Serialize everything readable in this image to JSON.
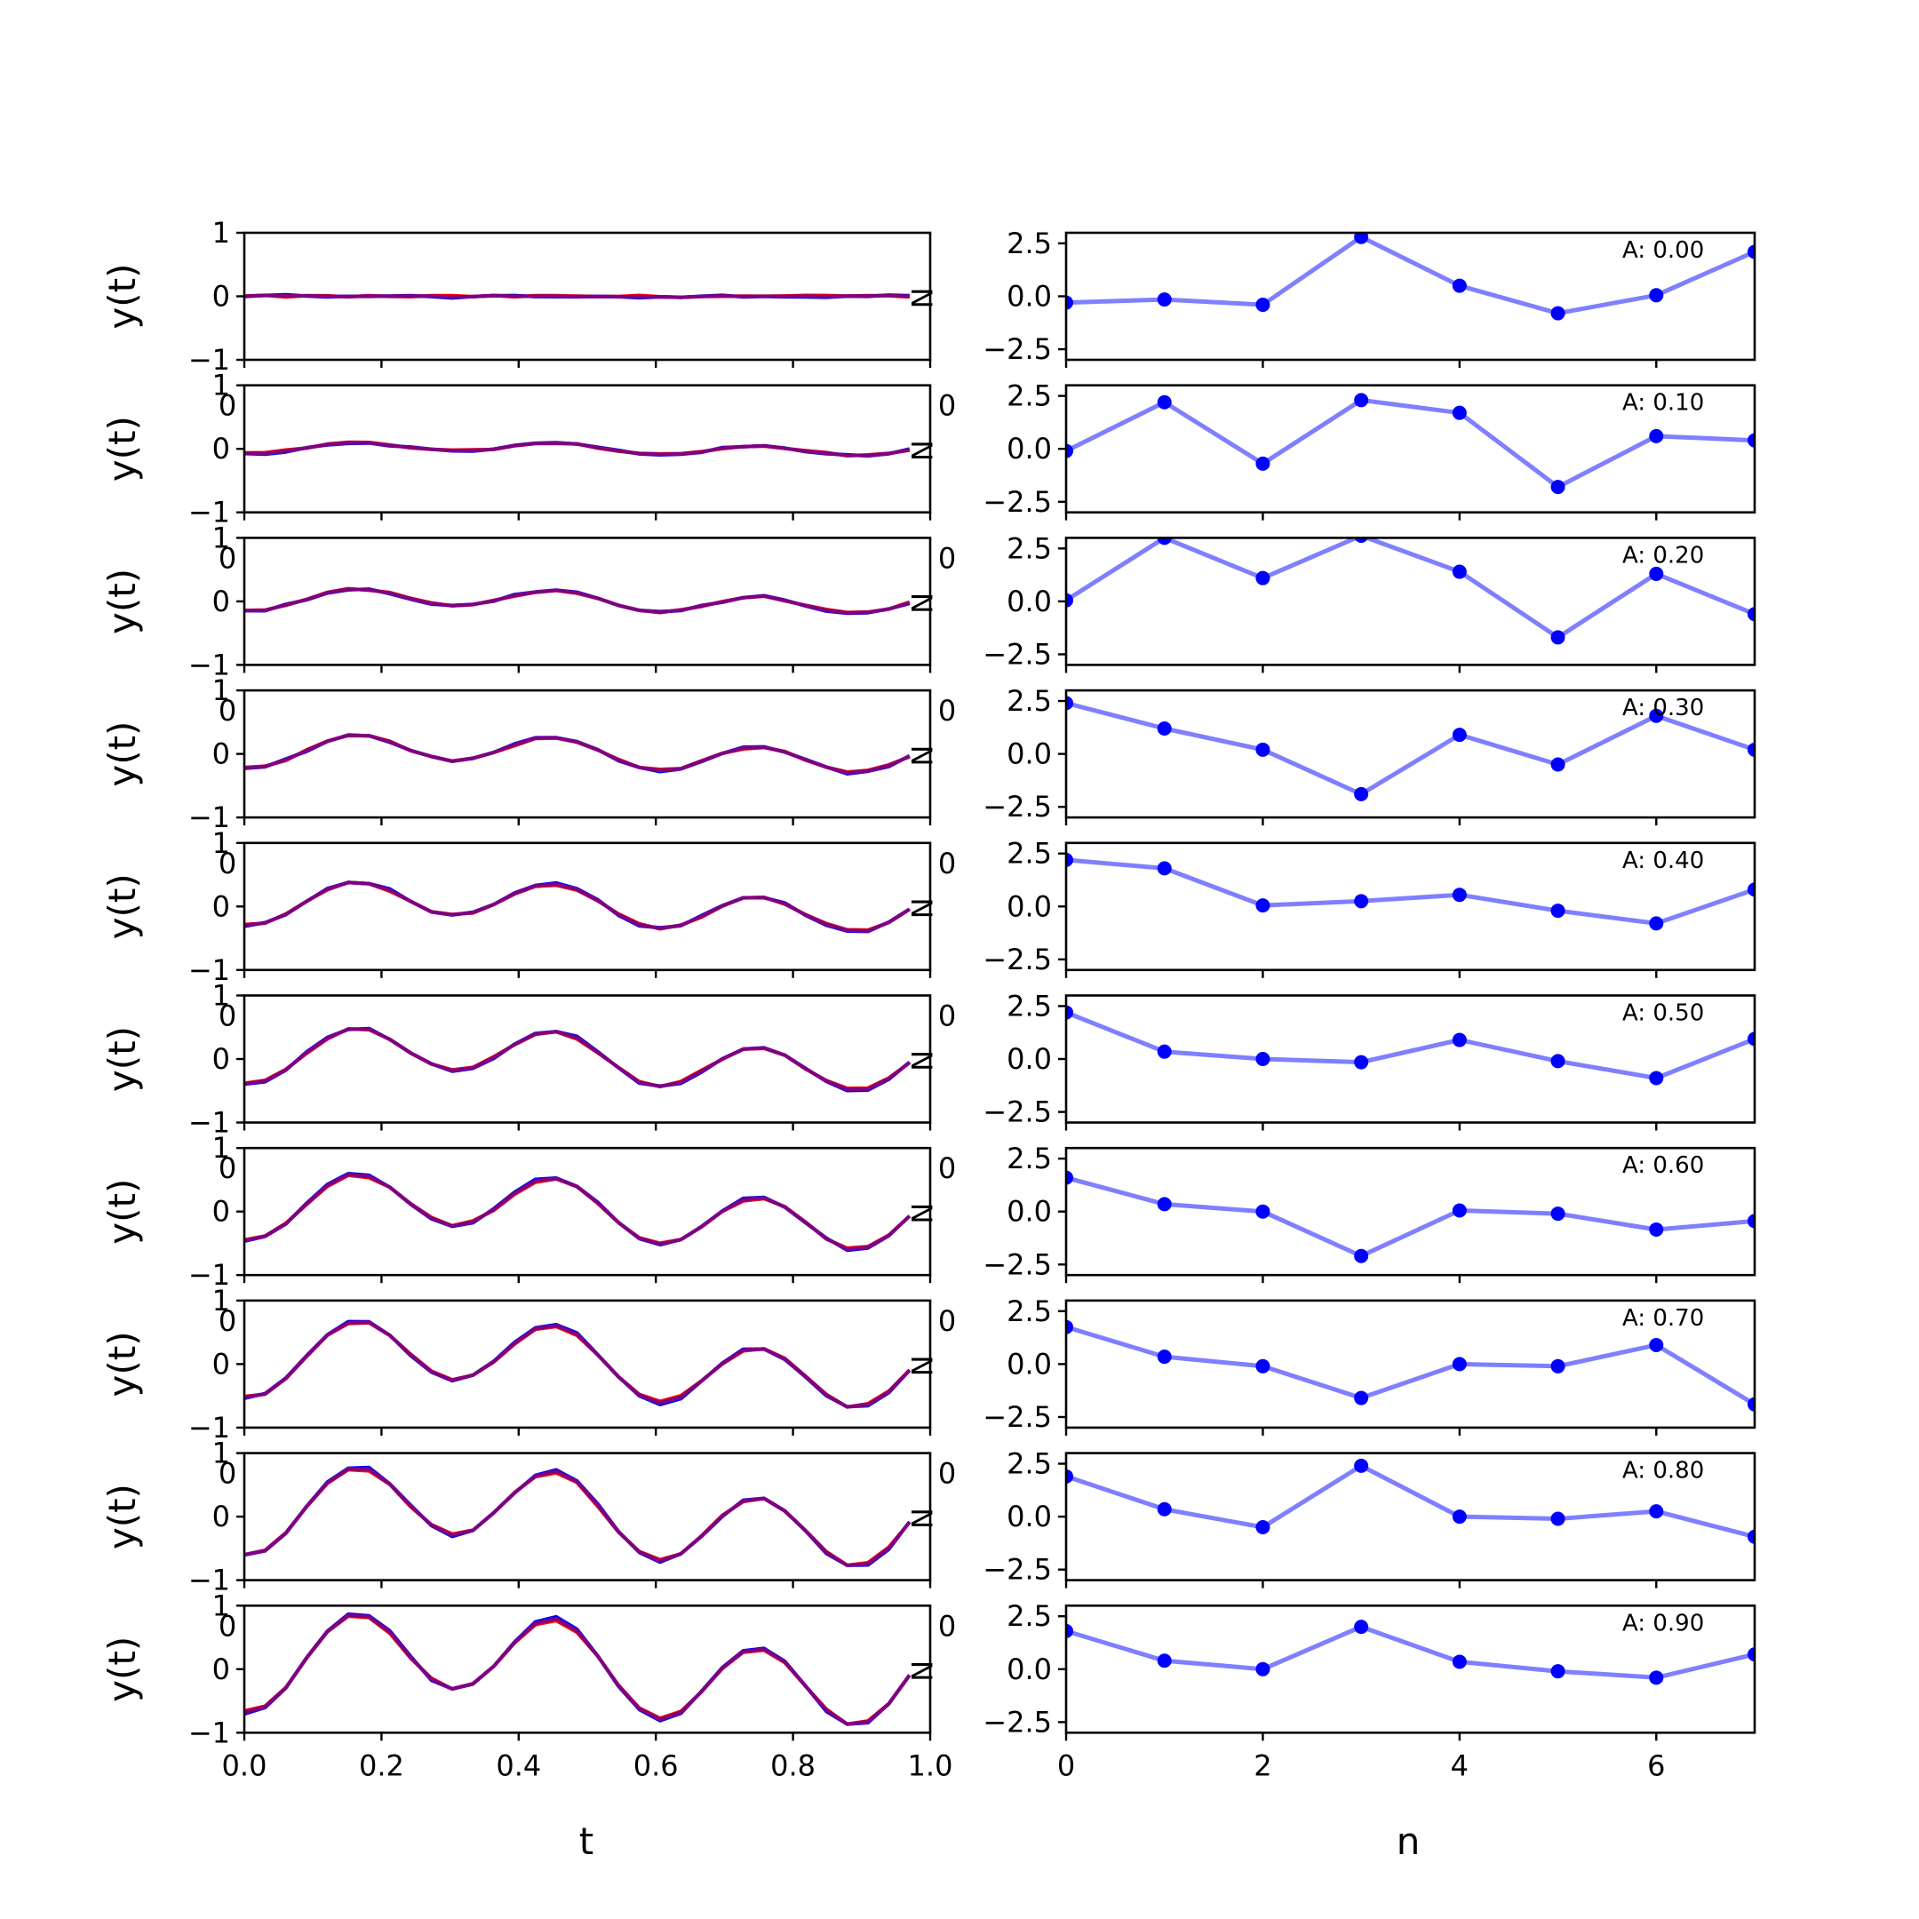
{
  "chart_data": [
    {
      "type": "line",
      "xlabel": "t",
      "ylabel": "y(t)",
      "xlim": [
        0.0,
        1.0
      ],
      "ylim": [
        -1,
        1
      ],
      "xticks": [
        "0.0",
        "0.2",
        "0.4",
        "0.6",
        "0.8",
        "1.0"
      ],
      "yticks": [
        "1",
        "0",
        "-1"
      ],
      "yticks_display": [
        "1",
        "0",
        "−1"
      ],
      "colors": {
        "series_a": "#ff0000",
        "series_b": "#0000ff",
        "overlap": "#800080"
      },
      "panel_amplitudes": [
        0.0,
        0.1,
        0.2,
        0.3,
        0.4,
        0.5,
        0.6,
        0.7,
        0.8,
        0.9
      ],
      "note": "Each panel shows two nearly overlapping curves (red and blue, appearing purple)."
    },
    {
      "type": "line",
      "xlabel": "n",
      "ylabel": "",
      "xlim": [
        0,
        7
      ],
      "ylim": [
        -3,
        3
      ],
      "xticks": [
        "0",
        "2",
        "4",
        "6"
      ],
      "yticks": [
        "2.5",
        "0.0",
        "-2.5"
      ],
      "yticks_display": [
        "2.5",
        "0.0",
        "−2.5"
      ],
      "color": "#0000ff",
      "x": [
        0,
        1,
        2,
        3,
        4,
        5,
        6,
        7
      ],
      "series": [
        {
          "annotation": "A: 0.00",
          "values": [
            -0.3,
            -0.15,
            -0.4,
            2.8,
            0.5,
            -0.8,
            0.05,
            2.1
          ]
        },
        {
          "annotation": "A: 0.10",
          "values": [
            -0.1,
            2.2,
            -0.7,
            2.3,
            1.7,
            -1.8,
            0.6,
            0.4
          ]
        },
        {
          "annotation": "A: 0.20",
          "values": [
            0.05,
            3.0,
            1.1,
            3.1,
            1.4,
            -1.7,
            1.3,
            -0.6
          ]
        },
        {
          "annotation": "A: 0.30",
          "values": [
            2.4,
            1.2,
            0.2,
            -1.9,
            0.9,
            -0.5,
            1.8,
            0.2
          ]
        },
        {
          "annotation": "A: 0.40",
          "values": [
            2.2,
            1.8,
            0.05,
            0.25,
            0.55,
            -0.2,
            -0.8,
            0.8
          ]
        },
        {
          "annotation": "A: 0.50",
          "values": [
            2.2,
            0.35,
            0.0,
            -0.15,
            0.9,
            -0.1,
            -0.9,
            0.95
          ]
        },
        {
          "annotation": "A: 0.60",
          "values": [
            1.6,
            0.35,
            0.0,
            -2.1,
            0.05,
            -0.1,
            -0.85,
            -0.45
          ]
        },
        {
          "annotation": "A: 0.70",
          "values": [
            1.75,
            0.35,
            -0.1,
            -1.6,
            0.0,
            -0.1,
            0.9,
            -1.9
          ]
        },
        {
          "annotation": "A: 0.80",
          "values": [
            1.9,
            0.35,
            -0.5,
            2.4,
            0.0,
            -0.1,
            0.25,
            -0.95
          ]
        },
        {
          "annotation": "A: 0.90",
          "values": [
            1.8,
            0.4,
            0.0,
            2.0,
            0.35,
            -0.1,
            -0.4,
            0.7
          ]
        }
      ]
    }
  ],
  "stray_labels": {
    "left": "0",
    "right": "0",
    "n_glyph": "N"
  }
}
